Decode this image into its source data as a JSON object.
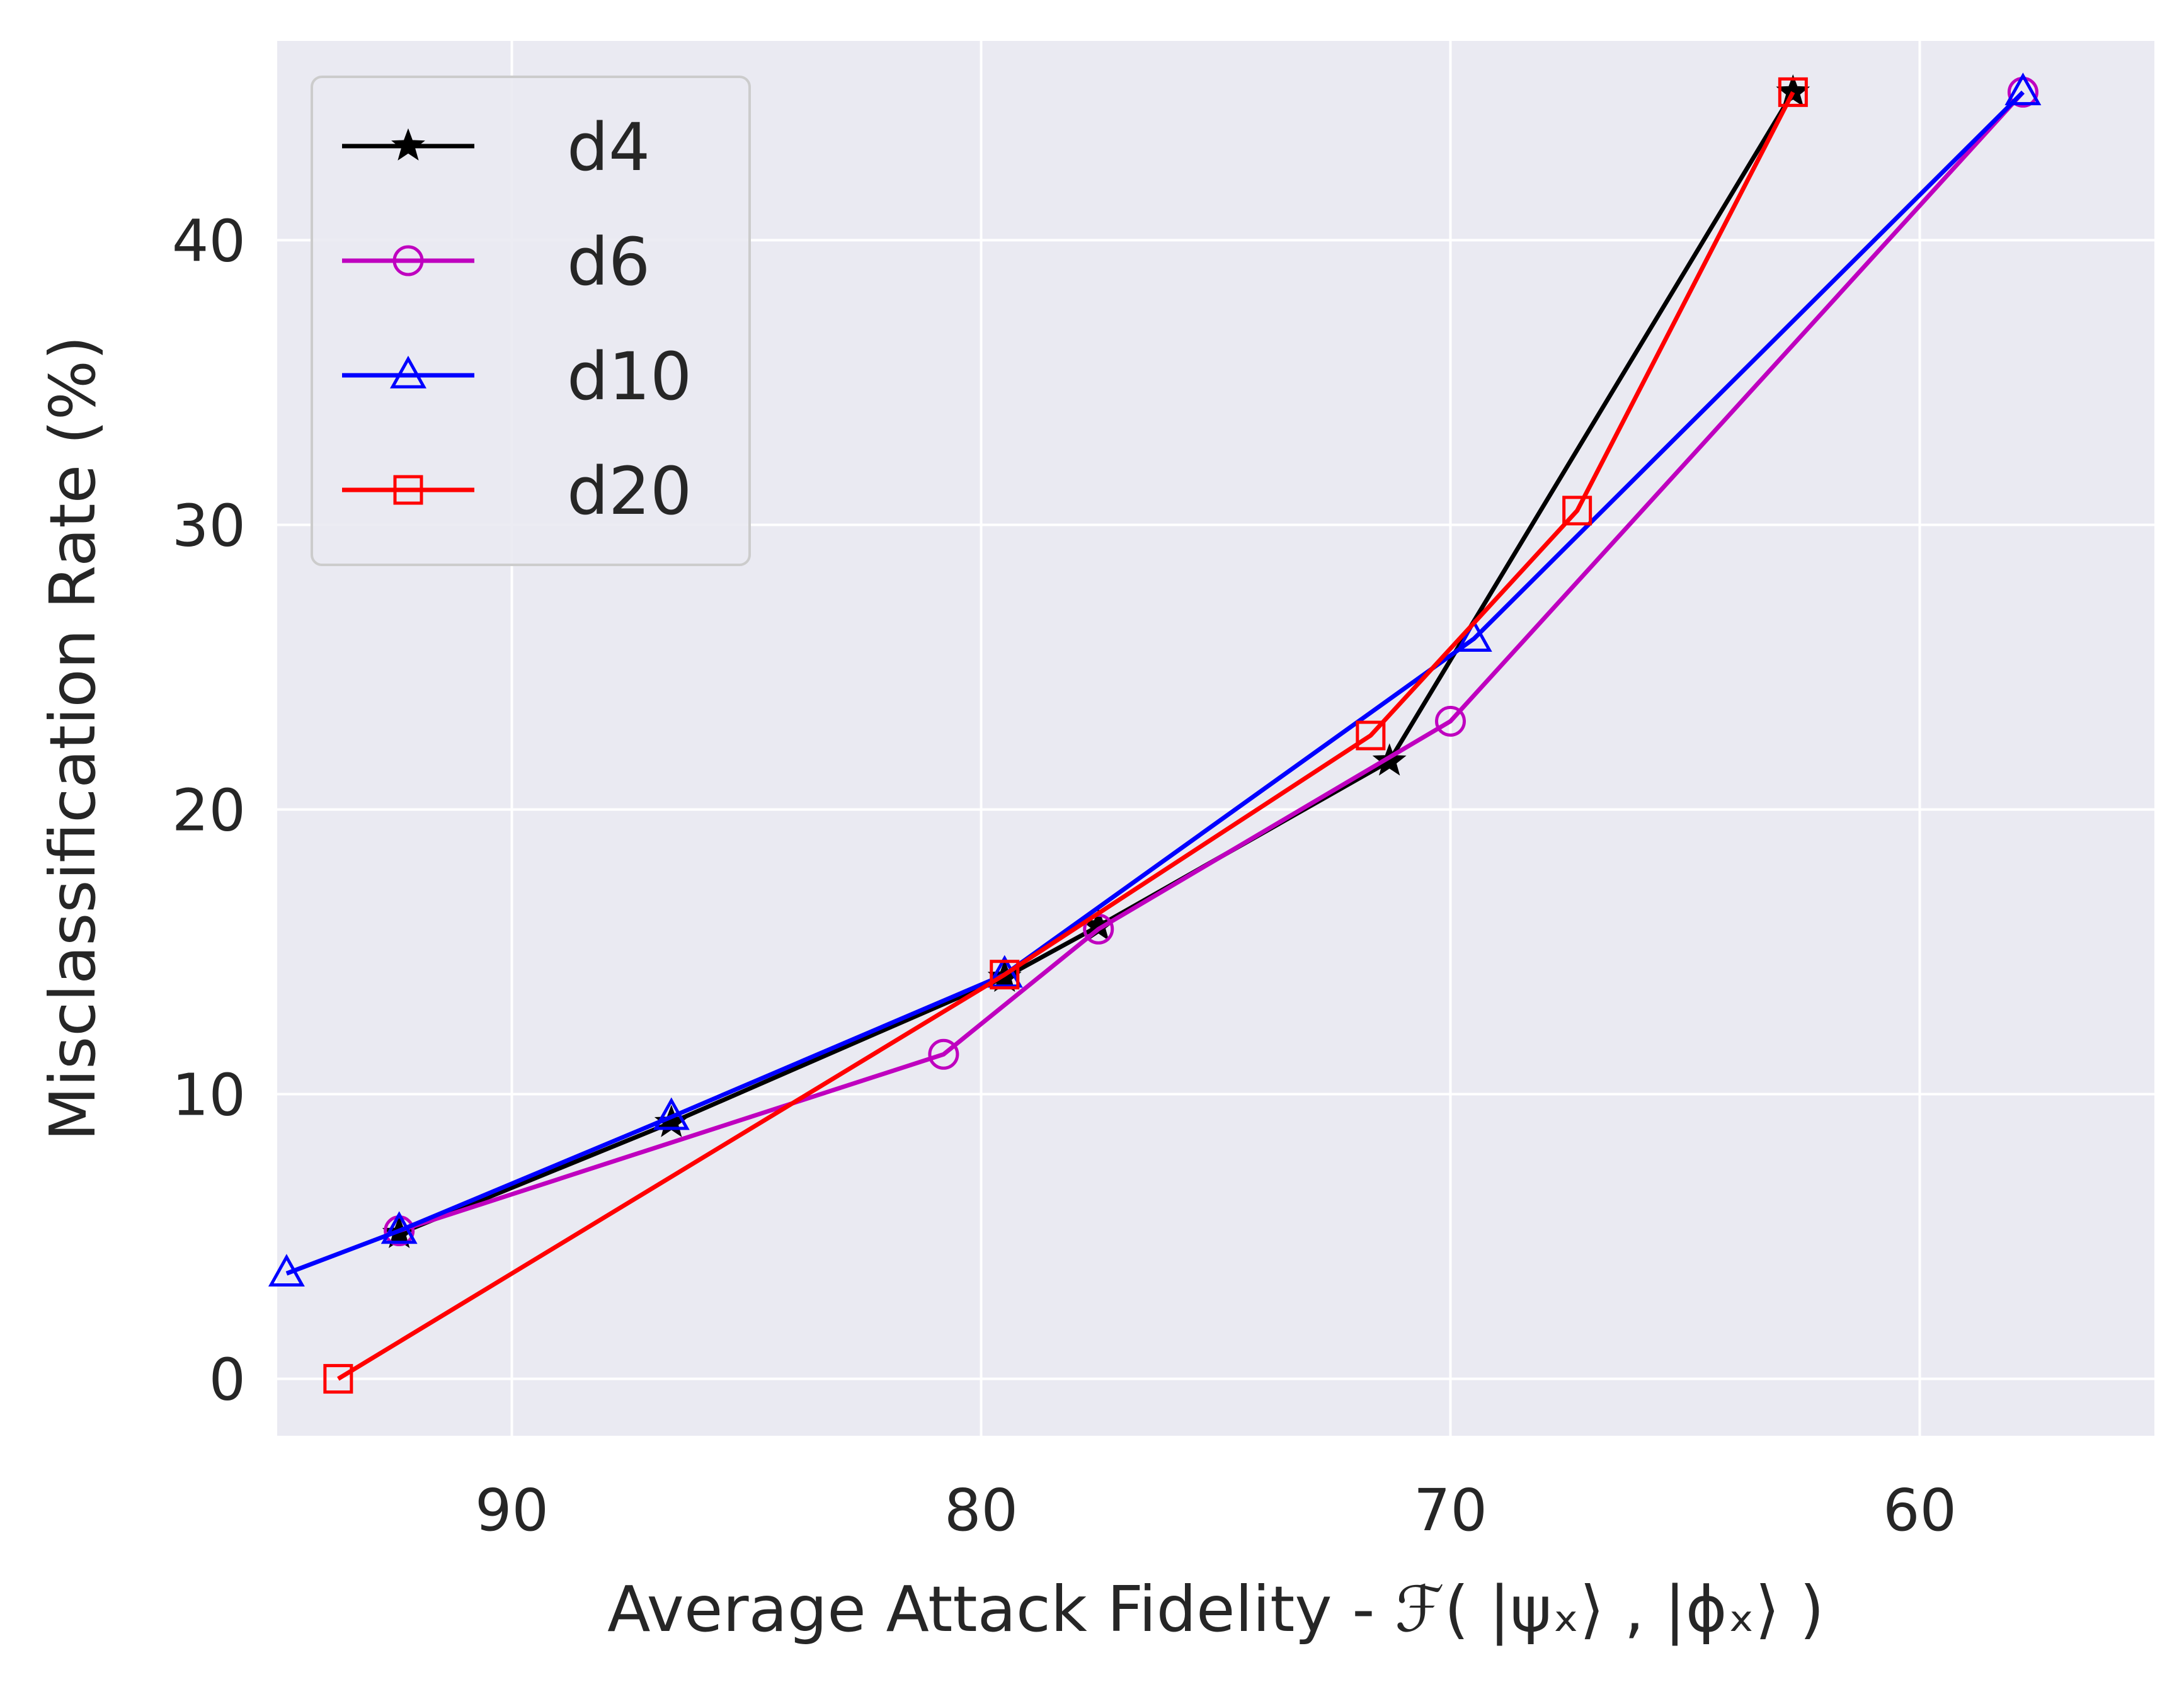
{
  "chart_data": {
    "type": "line",
    "title": "",
    "xlabel": "Average Attack Fidelity - ℱ( |ψₓ⟩ , |ϕₓ⟩ )",
    "ylabel": "Misclassification Rate (%)",
    "xlim": [
      95,
      55
    ],
    "ylim": [
      -2,
      47
    ],
    "x_inverted": true,
    "grid": true,
    "legend_position": "upper-left",
    "xticks": [
      90,
      80,
      70,
      60
    ],
    "yticks": [
      0,
      10,
      20,
      30,
      40
    ],
    "xtick_labels": [
      "90",
      "80",
      "70",
      "60"
    ],
    "ytick_labels": [
      "0",
      "10",
      "20",
      "30",
      "40"
    ],
    "series": [
      {
        "name": "d4",
        "color": "#000000",
        "marker": "star",
        "x": [
          92.4,
          86.6,
          79.5,
          77.5,
          71.3,
          62.7
        ],
        "y": [
          5.1,
          9.0,
          14.1,
          15.9,
          21.7,
          45.2
        ]
      },
      {
        "name": "d6",
        "color": "#bf00bf",
        "marker": "circle",
        "x": [
          92.4,
          80.8,
          77.5,
          70.0,
          57.8
        ],
        "y": [
          5.2,
          11.4,
          15.8,
          23.1,
          45.2
        ]
      },
      {
        "name": "d10",
        "color": "#0000ff",
        "marker": "triangle",
        "x": [
          94.8,
          92.4,
          86.6,
          79.5,
          69.5,
          57.8
        ],
        "y": [
          3.7,
          5.2,
          9.2,
          14.2,
          26.0,
          45.2
        ]
      },
      {
        "name": "d20",
        "color": "#ff0000",
        "marker": "square",
        "x": [
          93.7,
          79.5,
          71.7,
          67.3,
          62.7
        ],
        "y": [
          0.0,
          14.2,
          22.6,
          30.5,
          45.2
        ]
      }
    ]
  }
}
